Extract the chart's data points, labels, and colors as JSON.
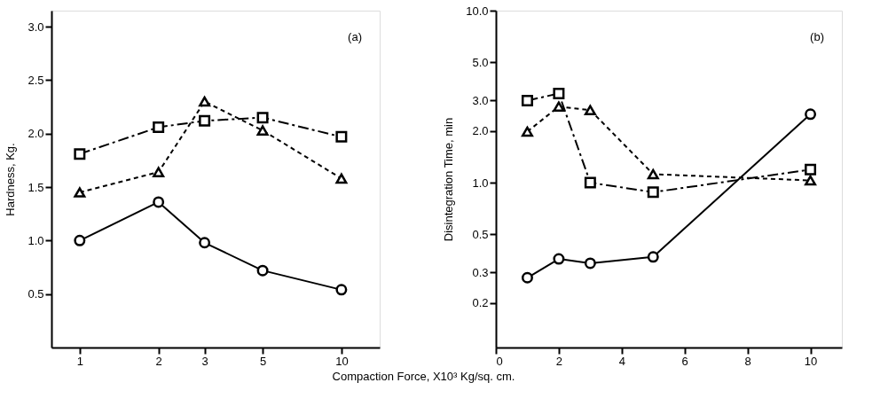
{
  "chart_data": [
    {
      "type": "line",
      "xlabel": "Compaction Force, X10³ Kg/sq. cm.",
      "ylabel": "Hardness, Kg.",
      "annotations": [
        "(a)"
      ],
      "log": "x",
      "grid": false,
      "xlim": [
        0.78,
        14
      ],
      "xticks": [
        1,
        2,
        3,
        5,
        10
      ],
      "ylim": [
        0,
        3.15
      ],
      "yticks": [
        {
          "value": 0.5,
          "label": "0.5"
        },
        {
          "value": 1,
          "label": "1.0"
        },
        {
          "value": 1.5,
          "label": "1.5"
        },
        {
          "value": 2,
          "label": "2.0"
        },
        {
          "value": 2.5,
          "label": "2.5"
        },
        {
          "value": 3,
          "label": "3.0"
        }
      ],
      "x": [
        1,
        2,
        3,
        5,
        10
      ],
      "series": [
        {
          "color": "#000000",
          "marker": "circle",
          "line_style": "solid",
          "values": [
            1.0,
            1.36,
            0.98,
            0.72,
            0.54
          ]
        },
        {
          "color": "#000000",
          "marker": "square",
          "line_style": "dashed",
          "values": [
            1.81,
            2.06,
            2.12,
            2.15,
            1.97
          ]
        },
        {
          "color": "#000000",
          "marker": "triangle",
          "line_style": "dotted",
          "values": [
            1.45,
            1.64,
            2.3,
            2.03,
            1.58
          ]
        }
      ]
    },
    {
      "type": "line",
      "ylabel": "Disintegration Time, min",
      "annotations": [
        "(b)"
      ],
      "log": "y",
      "grid": false,
      "xlim": [
        0,
        11
      ],
      "xticks": [
        0,
        2,
        4,
        6,
        8,
        10
      ],
      "ylim": [
        0.11,
        10
      ],
      "yticks": [
        0.2,
        0.3,
        0.5,
        {
          "value": 1,
          "label": "1.0"
        },
        {
          "value": 2,
          "label": "2.0"
        },
        {
          "value": 3,
          "label": "3.0"
        },
        {
          "value": 5,
          "label": "5.0"
        },
        {
          "value": 10,
          "label": "10.0"
        }
      ],
      "x": [
        1,
        2,
        3,
        5,
        10
      ],
      "series": [
        {
          "color": "#000000",
          "marker": "circle",
          "line_style": "solid",
          "values": [
            0.28,
            0.36,
            0.34,
            0.37,
            2.5
          ]
        },
        {
          "color": "#000000",
          "marker": "square",
          "line_style": "dashed",
          "values": [
            3.0,
            3.3,
            1.0,
            0.88,
            1.19
          ]
        },
        {
          "color": "#000000",
          "marker": "triangle",
          "line_style": "dotted",
          "values": [
            1.98,
            2.77,
            2.64,
            1.12,
            1.03
          ]
        }
      ]
    }
  ]
}
